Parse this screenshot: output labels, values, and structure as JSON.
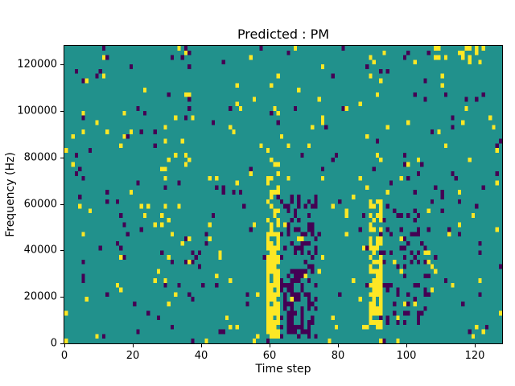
{
  "chart_data": {
    "type": "heatmap",
    "title": "Predicted : PM",
    "xlabel": "Time step",
    "ylabel": "Frequency (Hz)",
    "xlim": [
      0,
      128
    ],
    "ylim": [
      0,
      128000
    ],
    "grid_cols": 128,
    "grid_rows": 64,
    "x_ticks": [
      0,
      20,
      40,
      60,
      80,
      100,
      120
    ],
    "x_tick_labels": [
      "0",
      "20",
      "40",
      "60",
      "80",
      "100",
      "120"
    ],
    "y_ticks": [
      0,
      20000,
      40000,
      60000,
      80000,
      100000,
      120000
    ],
    "y_tick_labels": [
      "0",
      "20000",
      "40000",
      "60000",
      "80000",
      "100000",
      "120000"
    ],
    "grid": false,
    "legend": "none",
    "colormap": {
      "name": "viridis-ternary",
      "background_value_color": "#21918c",
      "positive_value_color": "#fde725",
      "negative_value_color": "#440154"
    },
    "scatter": {
      "seed": 7,
      "base_positive_density": 0.022,
      "base_negative_density": 0.022
    },
    "clusters": [
      {
        "x0": 59,
        "x1": 62,
        "f0": 3000,
        "f1": 46000,
        "value": 1,
        "density": 0.8
      },
      {
        "x0": 59,
        "x1": 62,
        "f0": 46000,
        "f1": 81000,
        "value": 1,
        "density": 0.35
      },
      {
        "x0": 63,
        "x1": 73,
        "f0": 2000,
        "f1": 62000,
        "value": -1,
        "density": 0.3
      },
      {
        "x0": 66,
        "x1": 69,
        "f0": 4000,
        "f1": 30000,
        "value": -1,
        "density": 0.5
      },
      {
        "x0": 89,
        "x1": 92,
        "f0": 7000,
        "f1": 59000,
        "value": 1,
        "density": 0.7
      },
      {
        "x0": 92,
        "x1": 106,
        "f0": 8000,
        "f1": 56000,
        "value": -1,
        "density": 0.18
      },
      {
        "x0": 107,
        "x1": 122,
        "f0": 120000,
        "f1": 128000,
        "value": 1,
        "density": 0.22
      },
      {
        "x0": 54,
        "x1": 57,
        "f0": 0,
        "f1": 4000,
        "value": 1,
        "density": 0.35
      }
    ]
  }
}
